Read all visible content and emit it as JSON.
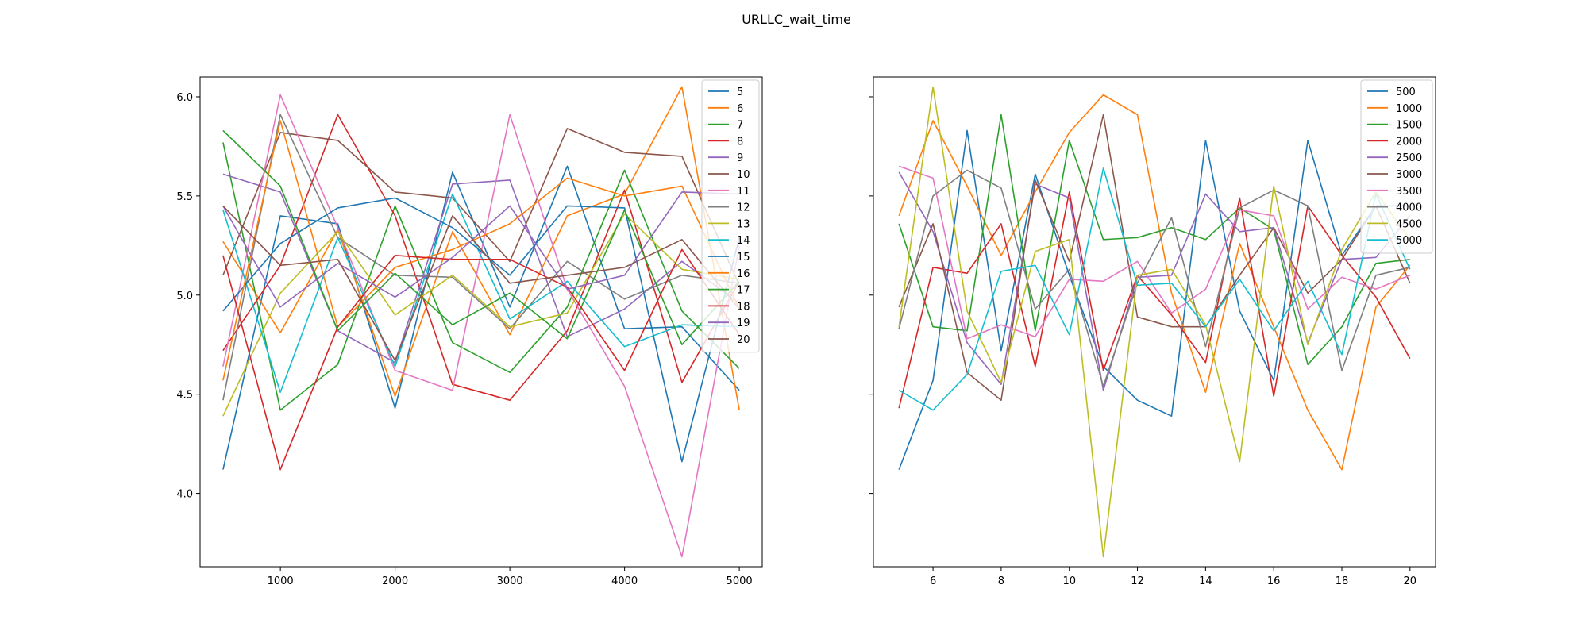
{
  "figure": {
    "title": "URLLC_wait_time"
  },
  "chart_data": [
    {
      "type": "line",
      "title": "",
      "xlabel": "",
      "ylabel": "",
      "x": [
        500,
        1000,
        1500,
        2000,
        2500,
        3000,
        3500,
        4000,
        4500,
        5000
      ],
      "xticks": [
        1000,
        2000,
        3000,
        4000,
        5000
      ],
      "xlim": [
        300,
        5200
      ],
      "yticks": [
        4.0,
        4.5,
        5.0,
        5.5,
        6.0
      ],
      "ylim": [
        3.63,
        6.1
      ],
      "grid": false,
      "legend_position": "top-right",
      "series": [
        {
          "name": "5",
          "color": "#1f77b4",
          "values": [
            4.12,
            5.4,
            5.36,
            4.43,
            5.62,
            4.94,
            5.65,
            4.83,
            4.84,
            4.52
          ]
        },
        {
          "name": "6",
          "color": "#ff7f0e",
          "values": [
            5.27,
            4.81,
            5.33,
            4.49,
            5.32,
            4.8,
            5.4,
            5.51,
            6.05,
            4.42
          ]
        },
        {
          "name": "7",
          "color": "#2ca02c",
          "values": [
            5.77,
            4.42,
            4.65,
            5.45,
            4.76,
            4.61,
            4.94,
            5.63,
            4.92,
            4.63
          ]
        },
        {
          "name": "8",
          "color": "#d62728",
          "values": [
            4.72,
            5.15,
            5.91,
            5.4,
            4.55,
            4.47,
            4.82,
            5.53,
            4.56,
            5.07
          ]
        },
        {
          "name": "9",
          "color": "#9467bd",
          "values": [
            5.61,
            5.52,
            4.82,
            4.66,
            5.56,
            5.58,
            4.79,
            4.93,
            5.17,
            4.96
          ]
        },
        {
          "name": "10",
          "color": "#8c564b",
          "values": [
            5.1,
            5.82,
            5.78,
            5.52,
            5.49,
            5.17,
            5.84,
            5.72,
            5.7,
            5.05
          ]
        },
        {
          "name": "11",
          "color": "#e377c2",
          "values": [
            4.64,
            6.01,
            5.34,
            4.62,
            4.52,
            5.91,
            5.03,
            4.54,
            3.68,
            5.25
          ]
        },
        {
          "name": "12",
          "color": "#7f7f7f",
          "values": [
            4.47,
            5.91,
            5.29,
            5.1,
            5.09,
            4.83,
            5.17,
            4.98,
            5.1,
            5.06
          ]
        },
        {
          "name": "13",
          "color": "#bcbd22",
          "values": [
            4.39,
            5.01,
            5.32,
            4.9,
            5.1,
            4.84,
            4.91,
            5.41,
            5.13,
            5.08
          ]
        },
        {
          "name": "14",
          "color": "#17becf",
          "values": [
            5.43,
            4.51,
            5.29,
            4.64,
            5.51,
            4.88,
            5.07,
            4.74,
            4.85,
            4.84
          ]
        },
        {
          "name": "15",
          "color": "#1f77b4",
          "values": [
            4.92,
            5.26,
            5.44,
            5.49,
            5.34,
            5.1,
            5.45,
            5.44,
            4.16,
            5.29
          ]
        },
        {
          "name": "16",
          "color": "#ff7f0e",
          "values": [
            4.57,
            5.88,
            4.84,
            5.14,
            5.23,
            5.36,
            5.59,
            5.5,
            5.55,
            4.93
          ]
        },
        {
          "name": "17",
          "color": "#2ca02c",
          "values": [
            5.83,
            5.55,
            4.82,
            5.11,
            4.85,
            5.01,
            4.78,
            5.43,
            4.75,
            5.07
          ]
        },
        {
          "name": "18",
          "color": "#d62728",
          "values": [
            5.2,
            4.12,
            4.84,
            5.2,
            5.18,
            5.18,
            5.04,
            4.62,
            5.23,
            4.8
          ]
        },
        {
          "name": "19",
          "color": "#9467bd",
          "values": [
            5.45,
            4.94,
            5.16,
            4.99,
            5.19,
            5.45,
            5.03,
            5.1,
            5.52,
            5.51
          ]
        },
        {
          "name": "20",
          "color": "#8c564b",
          "values": [
            5.45,
            5.15,
            5.18,
            4.67,
            5.4,
            5.06,
            5.1,
            5.14,
            5.28,
            4.93
          ]
        }
      ]
    },
    {
      "type": "line",
      "title": "",
      "xlabel": "",
      "ylabel": "",
      "x": [
        5,
        6,
        7,
        8,
        9,
        10,
        11,
        12,
        13,
        14,
        15,
        16,
        17,
        18,
        19,
        20
      ],
      "xticks": [
        6,
        8,
        10,
        12,
        14,
        16,
        18,
        20
      ],
      "xlim": [
        4.25,
        20.75
      ],
      "yticks": [
        4.0,
        4.5,
        5.0,
        5.5,
        6.0
      ],
      "ylim": [
        3.63,
        6.1
      ],
      "grid": false,
      "legend_position": "top-right",
      "series": [
        {
          "name": "500",
          "color": "#1f77b4",
          "values": [
            4.12,
            4.57,
            5.83,
            4.72,
            5.61,
            5.1,
            4.64,
            4.47,
            4.39,
            5.78,
            4.92,
            4.57,
            5.78,
            5.2,
            5.45,
            5.45
          ]
        },
        {
          "name": "1000",
          "color": "#ff7f0e",
          "values": [
            5.4,
            5.88,
            5.55,
            5.2,
            5.52,
            5.82,
            6.01,
            5.91,
            5.01,
            4.51,
            5.26,
            4.84,
            4.42,
            4.12,
            4.94,
            5.15
          ]
        },
        {
          "name": "1500",
          "color": "#2ca02c",
          "values": [
            5.36,
            4.84,
            4.82,
            5.91,
            4.82,
            5.78,
            5.28,
            5.29,
            5.34,
            5.28,
            5.44,
            5.33,
            4.65,
            4.84,
            5.16,
            5.18
          ]
        },
        {
          "name": "2000",
          "color": "#d62728",
          "values": [
            4.43,
            5.14,
            5.11,
            5.36,
            4.64,
            5.52,
            4.62,
            5.1,
            4.9,
            4.66,
            5.49,
            4.49,
            5.45,
            5.2,
            4.99,
            4.68
          ]
        },
        {
          "name": "2500",
          "color": "#9467bd",
          "values": [
            5.62,
            5.32,
            4.76,
            4.55,
            5.56,
            5.49,
            4.52,
            5.09,
            5.1,
            5.51,
            5.32,
            5.34,
            4.76,
            5.18,
            5.19,
            5.4
          ]
        },
        {
          "name": "3000",
          "color": "#8c564b",
          "values": [
            4.94,
            5.36,
            4.61,
            4.47,
            5.58,
            5.17,
            5.91,
            4.89,
            4.84,
            4.84,
            5.1,
            5.34,
            5.01,
            5.18,
            5.45,
            5.06
          ]
        },
        {
          "name": "3500",
          "color": "#e377c2",
          "values": [
            5.65,
            5.59,
            4.78,
            4.85,
            4.79,
            5.08,
            5.07,
            5.17,
            4.91,
            5.03,
            5.43,
            5.4,
            4.93,
            5.09,
            5.03,
            5.1
          ]
        },
        {
          "name": "4000",
          "color": "#7f7f7f",
          "values": [
            4.83,
            5.5,
            5.63,
            5.54,
            4.93,
            5.13,
            4.54,
            5.06,
            5.39,
            4.74,
            5.44,
            5.53,
            5.45,
            4.62,
            5.1,
            5.14
          ]
        },
        {
          "name": "4500",
          "color": "#bcbd22",
          "values": [
            4.84,
            6.05,
            4.92,
            4.56,
            5.22,
            5.28,
            3.68,
            5.1,
            5.13,
            4.85,
            4.16,
            5.55,
            4.75,
            5.23,
            5.52,
            5.28
          ]
        },
        {
          "name": "5000",
          "color": "#17becf",
          "values": [
            4.52,
            4.42,
            4.6,
            5.12,
            5.15,
            4.8,
            5.64,
            5.05,
            5.06,
            4.84,
            5.08,
            4.82,
            5.07,
            4.7,
            5.51,
            5.13
          ]
        }
      ]
    }
  ]
}
